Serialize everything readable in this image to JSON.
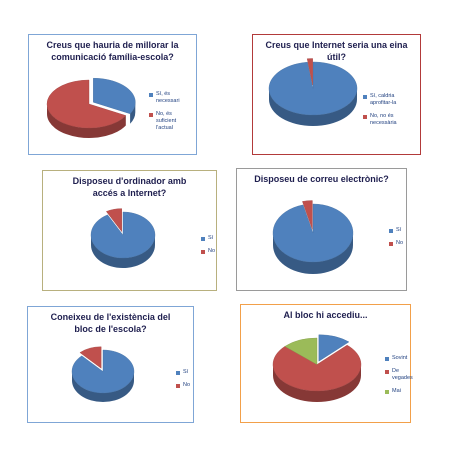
{
  "chart_data": [
    {
      "type": "pie",
      "title": "Creus que hauria de millorar la comunicació família-escola?",
      "categories": [
        "Sí, és necessari",
        "No, és suficient l'actual"
      ],
      "values": [
        33,
        67
      ],
      "colors": [
        "#4f81bd",
        "#c0504d"
      ],
      "exploded_slice": 0,
      "legend_position": "right"
    },
    {
      "type": "pie",
      "title": "Creus que Internet seria una eina útil?",
      "categories": [
        "Sí, caldria aprofitar-la",
        "No, no és necessària"
      ],
      "values": [
        98,
        2
      ],
      "colors": [
        "#4f81bd",
        "#c0504d"
      ],
      "exploded_slice": 1,
      "legend_position": "right"
    },
    {
      "type": "pie",
      "title": "Disposeu d'ordinador amb accés a Internet?",
      "categories": [
        "Sí",
        "No"
      ],
      "values": [
        92,
        8
      ],
      "colors": [
        "#4f81bd",
        "#c0504d"
      ],
      "exploded_slice": 1,
      "legend_position": "right"
    },
    {
      "type": "pie",
      "title": "Disposeu de correu electrònic?",
      "categories": [
        "Sí",
        "No"
      ],
      "values": [
        96,
        4
      ],
      "colors": [
        "#4f81bd",
        "#c0504d"
      ],
      "exploded_slice": 1,
      "legend_position": "right"
    },
    {
      "type": "pie",
      "title": "Coneixeu de l'existència del bloc de l'escola?",
      "categories": [
        "Sí",
        "No"
      ],
      "values": [
        88,
        12
      ],
      "colors": [
        "#4f81bd",
        "#c0504d"
      ],
      "exploded_slice": 1,
      "legend_position": "right"
    },
    {
      "type": "pie",
      "title": "Al bloc hi accediu...",
      "categories": [
        "Sovint",
        "De vegades",
        "Mai"
      ],
      "values": [
        12,
        75,
        13
      ],
      "colors": [
        "#4f81bd",
        "#c0504d",
        "#9bbb59"
      ],
      "exploded_slice": 0,
      "legend_position": "right"
    }
  ]
}
